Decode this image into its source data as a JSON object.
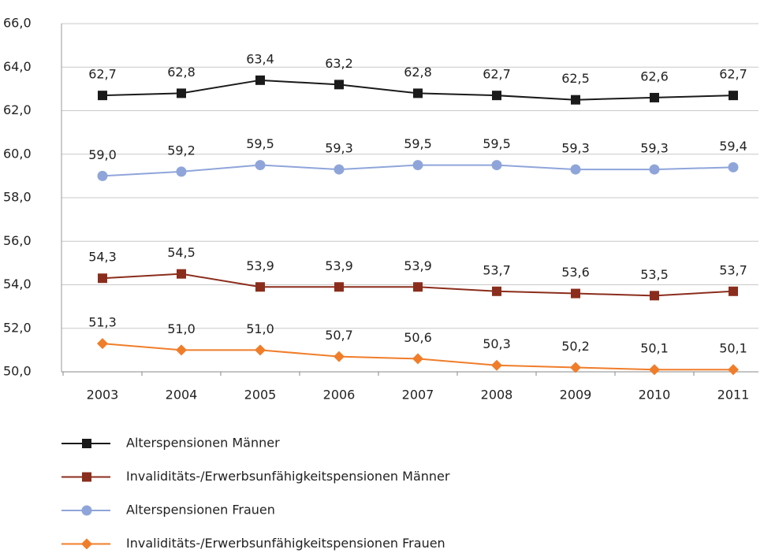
{
  "chart_data": {
    "type": "line",
    "categories": [
      "2003",
      "2004",
      "2005",
      "2006",
      "2007",
      "2008",
      "2009",
      "2010",
      "2011"
    ],
    "ylim": [
      50,
      66
    ],
    "yticks": [
      {
        "value": 50,
        "label": "50,0"
      },
      {
        "value": 52,
        "label": "52,0"
      },
      {
        "value": 54,
        "label": "54,0"
      },
      {
        "value": 56,
        "label": "56,0"
      },
      {
        "value": 58,
        "label": "58,0"
      },
      {
        "value": 60,
        "label": "60,0"
      },
      {
        "value": 62,
        "label": "62,0"
      },
      {
        "value": 64,
        "label": "64,0"
      },
      {
        "value": 66,
        "label": "66,0"
      }
    ],
    "grid": true,
    "series": [
      {
        "name": "Alterspensionen Männer",
        "color": "#1a1a1a",
        "marker": "square",
        "values": [
          62.7,
          62.8,
          63.4,
          63.2,
          62.8,
          62.7,
          62.5,
          62.6,
          62.7
        ],
        "value_labels": [
          "62,7",
          "62,8",
          "63,4",
          "63,2",
          "62,8",
          "62,7",
          "62,5",
          "62,6",
          "62,7"
        ]
      },
      {
        "name": "Invaliditäts-/Erwerbsunfähigkeitspensionen Männer",
        "color": "#8b2d1c",
        "marker": "square",
        "values": [
          54.3,
          54.5,
          53.9,
          53.9,
          53.9,
          53.7,
          53.6,
          53.5,
          53.7
        ],
        "value_labels": [
          "54,3",
          "54,5",
          "53,9",
          "53,9",
          "53,9",
          "53,7",
          "53,6",
          "53,5",
          "53,7"
        ]
      },
      {
        "name": "Alterspensionen Frauen",
        "color": "#8fa5da",
        "marker": "circle",
        "values": [
          59.0,
          59.2,
          59.5,
          59.3,
          59.5,
          59.5,
          59.3,
          59.3,
          59.4
        ],
        "value_labels": [
          "59,0",
          "59,2",
          "59,5",
          "59,3",
          "59,5",
          "59,5",
          "59,3",
          "59,3",
          "59,4"
        ]
      },
      {
        "name": "Invaliditäts-/Erwerbsunfähigkeitspensionen Frauen",
        "color": "#f07d2a",
        "marker": "diamond",
        "values": [
          51.3,
          51.0,
          51.0,
          50.7,
          50.6,
          50.3,
          50.2,
          50.1,
          50.1
        ],
        "value_labels": [
          "51,3",
          "51,0",
          "51,0",
          "50,7",
          "50,6",
          "50,3",
          "50,2",
          "50,1",
          "50,1"
        ]
      }
    ]
  }
}
